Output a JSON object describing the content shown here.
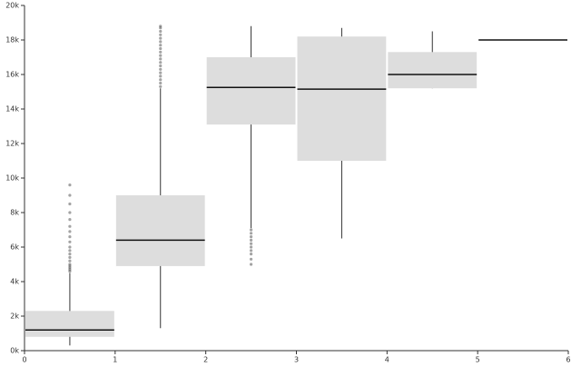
{
  "chart_data": {
    "type": "box",
    "xlim": [
      0,
      6
    ],
    "xticks": [
      0,
      1,
      2,
      3,
      4,
      5,
      6
    ],
    "ylim": [
      0,
      20000
    ],
    "yticks": [
      {
        "value": 0,
        "label": "0k"
      },
      {
        "value": 2000,
        "label": "2k"
      },
      {
        "value": 4000,
        "label": "4k"
      },
      {
        "value": 6000,
        "label": "6k"
      },
      {
        "value": 8000,
        "label": "8k"
      },
      {
        "value": 10000,
        "label": "10k"
      },
      {
        "value": 12000,
        "label": "12k"
      },
      {
        "value": 14000,
        "label": "14k"
      },
      {
        "value": 16000,
        "label": "16k"
      },
      {
        "value": 18000,
        "label": "18k"
      },
      {
        "value": 20000,
        "label": "20k"
      }
    ],
    "box_color": "#dddddd",
    "median_color": "#111111",
    "outlier_color": "#333333",
    "boxes": [
      {
        "x0": 0,
        "x1": 1,
        "min": 300,
        "q1": 800,
        "median": 1200,
        "q3": 2300,
        "max": 4500,
        "outliers": [
          4600,
          4700,
          4800,
          4900,
          5000,
          5200,
          5400,
          5600,
          5800,
          6000,
          6300,
          6600,
          6900,
          7200,
          7600,
          8000,
          8500,
          9000,
          9600
        ]
      },
      {
        "x0": 1,
        "x1": 2,
        "min": 1300,
        "q1": 4900,
        "median": 6400,
        "q3": 9000,
        "max": 15200,
        "outliers": [
          15300,
          15500,
          15700,
          15900,
          16100,
          16300,
          16500,
          16700,
          16900,
          17100,
          17300,
          17500,
          17700,
          17900,
          18100,
          18300,
          18500,
          18700,
          18800
        ]
      },
      {
        "x0": 2,
        "x1": 3,
        "min": 7100,
        "q1": 13100,
        "median": 15250,
        "q3": 17000,
        "max": 18800,
        "outliers": [
          5000,
          5300,
          5600,
          5800,
          6000,
          6200,
          6400,
          6600,
          6800,
          7000
        ]
      },
      {
        "x0": 3,
        "x1": 4,
        "min": 6500,
        "q1": 11000,
        "median": 15150,
        "q3": 18200,
        "max": 18700,
        "outliers": []
      },
      {
        "x0": 4,
        "x1": 5,
        "min": 15200,
        "q1": 15200,
        "median": 16000,
        "q3": 17300,
        "max": 18500,
        "outliers": []
      },
      {
        "x0": 5,
        "x1": 6,
        "min": 18000,
        "q1": 18000,
        "median": 18000,
        "q3": 18000,
        "max": 18000,
        "outliers": []
      }
    ]
  }
}
